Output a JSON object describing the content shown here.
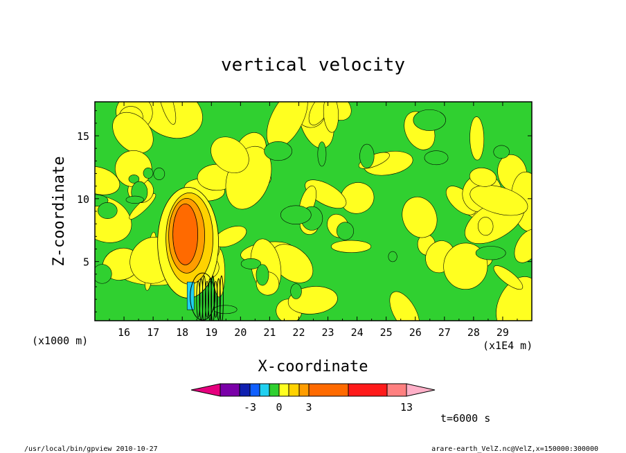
{
  "chart_data": {
    "type": "heatmap",
    "title": "vertical velocity",
    "xlabel": "X-coordinate",
    "ylabel": "Z-coordinate",
    "x_unit_label": "(x1E4 m)",
    "y_unit_label": "(x1000 m)",
    "xlim": [
      15.0,
      30.0
    ],
    "ylim": [
      0.3,
      17.7
    ],
    "x_ticks": [
      16,
      17,
      18,
      19,
      20,
      21,
      22,
      23,
      24,
      25,
      26,
      27,
      28,
      29
    ],
    "y_ticks": [
      5,
      10,
      15
    ],
    "colorbar": {
      "levels_shown": [
        "-3",
        "0",
        "3",
        "13"
      ],
      "colors": [
        "#e6007e",
        "#7a00a8",
        "#1020b0",
        "#1060ff",
        "#20d0f0",
        "#30d030",
        "#ffff20",
        "#ffd200",
        "#ff9d00",
        "#ff6a00",
        "#ff1a1a",
        "#ff8080",
        "#ffb0c8"
      ]
    },
    "annotation": "t=6000 s",
    "cells": [
      {
        "x": 18.0,
        "z": 6.5,
        "w": 5,
        "level": "max"
      },
      {
        "x": 18.3,
        "z": 2.5,
        "w": 3,
        "level": "strong"
      },
      {
        "x": 18.8,
        "z": 2.0,
        "w": 3,
        "level": "strong"
      }
    ]
  },
  "footer": {
    "left": "/usr/local/bin/gpview   2010-10-27",
    "right": "arare-earth_VelZ.nc@VelZ,x=150000:300000"
  },
  "colors": {
    "green": "#30d030",
    "yellow": "#ffff20",
    "gold": "#ffd200",
    "orange": "#ff9d00",
    "deep_orange": "#ff6a00",
    "cyan": "#20d0f0"
  }
}
